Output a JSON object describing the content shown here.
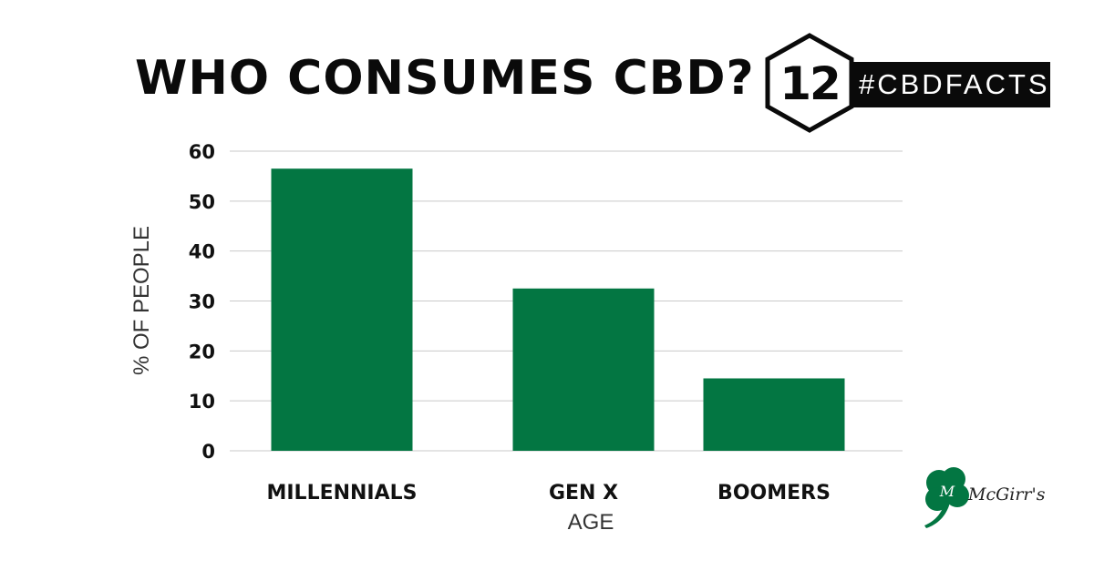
{
  "title": "WHO CONSUMES CBD?",
  "badge": {
    "number": "12",
    "tag": "#CBDFACTS"
  },
  "brand": {
    "name": "McGirr's"
  },
  "colors": {
    "bar": "#037642",
    "grid": "#c9c9c9",
    "text": "#0a0a0a"
  },
  "chart_data": {
    "type": "bar",
    "title": "WHO CONSUMES CBD?",
    "xlabel": "AGE",
    "ylabel": "% OF PEOPLE",
    "categories": [
      "MILLENNIALS",
      "GEN X",
      "BOOMERS"
    ],
    "values": [
      56.5,
      32.5,
      14.5
    ],
    "ylim": [
      0,
      60
    ],
    "yticks": [
      0,
      10,
      20,
      30,
      40,
      50,
      60
    ],
    "grid": true,
    "legend": "none"
  }
}
